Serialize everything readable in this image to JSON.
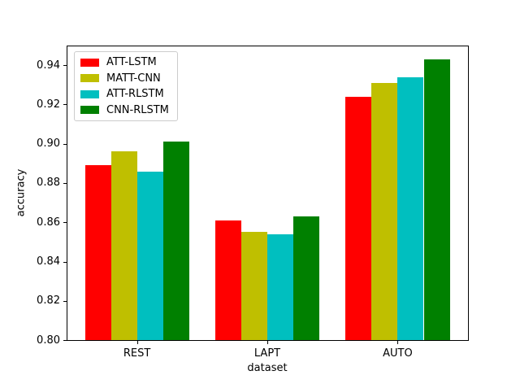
{
  "figure": {
    "background": "#ffffff",
    "text_color": "#000000"
  },
  "chart_data": {
    "type": "bar",
    "title": "",
    "xlabel": "dataset",
    "ylabel": "accuracy",
    "categories": [
      "REST",
      "LAPT",
      "AUTO"
    ],
    "series": [
      {
        "name": "ATT-LSTM",
        "color": "#ff0000",
        "values": [
          0.889,
          0.861,
          0.924
        ]
      },
      {
        "name": "MATT-CNN",
        "color": "#bfbf00",
        "values": [
          0.896,
          0.855,
          0.931
        ]
      },
      {
        "name": "ATT-RLSTM",
        "color": "#00bfbf",
        "values": [
          0.886,
          0.854,
          0.934
        ]
      },
      {
        "name": "CNN-RLSTM",
        "color": "#008000",
        "values": [
          0.901,
          0.863,
          0.943
        ]
      }
    ],
    "ylim": [
      0.8,
      0.95
    ],
    "ytick_labels": [
      "0.80",
      "0.82",
      "0.84",
      "0.86",
      "0.88",
      "0.90",
      "0.92",
      "0.94"
    ],
    "bar_width_units": 0.2,
    "grid": false,
    "legend_position": "upper-left",
    "spine_color": "#000000",
    "legend_border_color": "#cccccc"
  }
}
